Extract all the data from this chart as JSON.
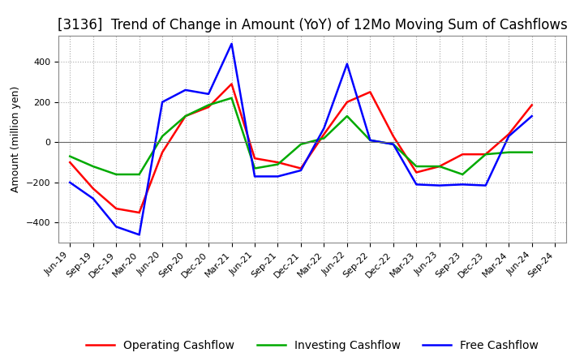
{
  "title": "[3136]  Trend of Change in Amount (YoY) of 12Mo Moving Sum of Cashflows",
  "ylabel": "Amount (million yen)",
  "labels": [
    "Jun-19",
    "Sep-19",
    "Dec-19",
    "Mar-20",
    "Jun-20",
    "Sep-20",
    "Dec-20",
    "Mar-21",
    "Jun-21",
    "Sep-21",
    "Dec-21",
    "Mar-22",
    "Jun-22",
    "Sep-22",
    "Dec-22",
    "Mar-23",
    "Jun-23",
    "Sep-23",
    "Dec-23",
    "Mar-24",
    "Jun-24",
    "Sep-24"
  ],
  "operating": [
    -100,
    -230,
    -330,
    -350,
    -50,
    130,
    175,
    290,
    -80,
    -100,
    -130,
    40,
    200,
    250,
    30,
    -150,
    -120,
    -60,
    -60,
    40,
    185,
    null
  ],
  "investing": [
    -70,
    -120,
    -160,
    -160,
    30,
    130,
    185,
    220,
    -130,
    -110,
    -10,
    20,
    130,
    10,
    -10,
    -120,
    -120,
    -160,
    -60,
    -50,
    -50,
    null
  ],
  "free": [
    -200,
    -280,
    -420,
    -460,
    200,
    260,
    240,
    490,
    -170,
    -170,
    -140,
    70,
    390,
    10,
    -10,
    -210,
    -215,
    -210,
    -215,
    30,
    130,
    null
  ],
  "operating_color": "#ff0000",
  "investing_color": "#00aa00",
  "free_color": "#0000ff",
  "background": "#ffffff",
  "ylim": [
    -500,
    530
  ],
  "yticks": [
    -400,
    -200,
    0,
    200,
    400
  ],
  "grid_color": "#aaaaaa",
  "title_fontsize": 12,
  "axis_fontsize": 9,
  "tick_fontsize": 8,
  "legend_fontsize": 10
}
